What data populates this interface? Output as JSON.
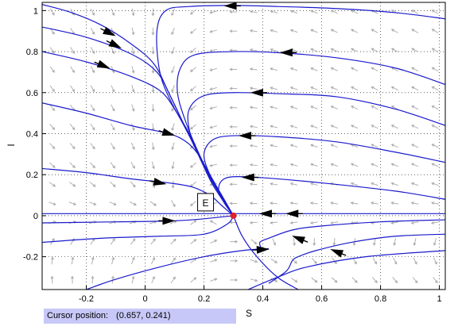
{
  "chart_data": {
    "type": "phase-portrait",
    "xlabel": "S",
    "ylabel": "I",
    "xlim": [
      -0.35,
      1.02
    ],
    "ylim": [
      -0.36,
      1.04
    ],
    "xticks": [
      "-0.2",
      "0",
      "0.2",
      "0.4",
      "0.6",
      "0.8",
      "1"
    ],
    "xtick_values": [
      -0.2,
      0,
      0.2,
      0.4,
      0.6,
      0.8,
      1.0
    ],
    "yticks": [
      "-0.2",
      "0",
      "0.2",
      "0.4",
      "0.6",
      "0.8",
      "1"
    ],
    "ytick_values": [
      -0.2,
      0,
      0.2,
      0.4,
      0.6,
      0.8,
      1.0
    ],
    "grid": "dotted",
    "equilibrium_label": "E",
    "equilibrium": {
      "x": 0.3,
      "y": 0.0
    },
    "colors": {
      "trajectory": "#1a1acd",
      "field": "#a9a9a9",
      "equilibrium": "#e0202a",
      "arrow": "#000000"
    },
    "trajectories": [
      {
        "points": [
          [
            1.02,
            0.96
          ],
          [
            0.85,
            0.99
          ],
          [
            0.65,
            1.01
          ],
          [
            0.45,
            1.02
          ],
          [
            0.3,
            1.025
          ],
          [
            0.15,
            1.02
          ],
          [
            0.07,
            1.0
          ],
          [
            0.04,
            0.9
          ],
          [
            0.05,
            0.7
          ],
          [
            0.09,
            0.55
          ],
          [
            0.15,
            0.4
          ],
          [
            0.2,
            0.25
          ],
          [
            0.25,
            0.12
          ],
          [
            0.3,
            0.0
          ]
        ]
      },
      {
        "points": [
          [
            1.02,
            0.64
          ],
          [
            0.85,
            0.72
          ],
          [
            0.65,
            0.77
          ],
          [
            0.45,
            0.795
          ],
          [
            0.3,
            0.8
          ],
          [
            0.17,
            0.785
          ],
          [
            0.12,
            0.72
          ],
          [
            0.11,
            0.6
          ],
          [
            0.14,
            0.45
          ],
          [
            0.19,
            0.28
          ],
          [
            0.24,
            0.14
          ],
          [
            0.3,
            0.0
          ]
        ]
      },
      {
        "points": [
          [
            1.02,
            0.44
          ],
          [
            0.85,
            0.52
          ],
          [
            0.65,
            0.58
          ],
          [
            0.45,
            0.595
          ],
          [
            0.3,
            0.6
          ],
          [
            0.2,
            0.585
          ],
          [
            0.15,
            0.52
          ],
          [
            0.15,
            0.42
          ],
          [
            0.18,
            0.3
          ],
          [
            0.23,
            0.16
          ],
          [
            0.3,
            0.0
          ]
        ]
      },
      {
        "points": [
          [
            1.02,
            0.26
          ],
          [
            0.85,
            0.31
          ],
          [
            0.65,
            0.36
          ],
          [
            0.45,
            0.385
          ],
          [
            0.3,
            0.39
          ],
          [
            0.23,
            0.37
          ],
          [
            0.2,
            0.3
          ],
          [
            0.22,
            0.2
          ],
          [
            0.26,
            0.1
          ],
          [
            0.3,
            0.0
          ]
        ]
      },
      {
        "points": [
          [
            1.02,
            0.08
          ],
          [
            0.85,
            0.12
          ],
          [
            0.6,
            0.16
          ],
          [
            0.4,
            0.185
          ],
          [
            0.3,
            0.19
          ],
          [
            0.26,
            0.17
          ],
          [
            0.25,
            0.12
          ],
          [
            0.27,
            0.06
          ],
          [
            0.3,
            0.0
          ]
        ]
      },
      {
        "points": [
          [
            -0.35,
            1.03
          ],
          [
            -0.25,
            0.99
          ],
          [
            -0.15,
            0.93
          ],
          [
            -0.05,
            0.84
          ],
          [
            0.03,
            0.74
          ],
          [
            0.08,
            0.6
          ],
          [
            0.13,
            0.45
          ],
          [
            0.18,
            0.3
          ],
          [
            0.23,
            0.15
          ],
          [
            0.3,
            0.0
          ]
        ]
      },
      {
        "points": [
          [
            -0.35,
            0.92
          ],
          [
            -0.2,
            0.87
          ],
          [
            -0.05,
            0.79
          ],
          [
            0.04,
            0.7
          ],
          [
            0.09,
            0.57
          ],
          [
            0.14,
            0.42
          ],
          [
            0.19,
            0.28
          ],
          [
            0.24,
            0.14
          ],
          [
            0.3,
            0.0
          ]
        ]
      },
      {
        "points": [
          [
            -0.35,
            0.8
          ],
          [
            -0.2,
            0.75
          ],
          [
            -0.05,
            0.68
          ],
          [
            0.05,
            0.61
          ],
          [
            0.1,
            0.52
          ],
          [
            0.15,
            0.39
          ],
          [
            0.2,
            0.25
          ],
          [
            0.25,
            0.12
          ],
          [
            0.3,
            0.0
          ]
        ]
      },
      {
        "points": [
          [
            -0.35,
            0.55
          ],
          [
            -0.2,
            0.5
          ],
          [
            -0.05,
            0.44
          ],
          [
            0.08,
            0.4
          ],
          [
            0.14,
            0.36
          ],
          [
            0.18,
            0.3
          ],
          [
            0.22,
            0.2
          ],
          [
            0.26,
            0.1
          ],
          [
            0.3,
            0.0
          ]
        ]
      },
      {
        "points": [
          [
            -0.35,
            0.23
          ],
          [
            -0.2,
            0.21
          ],
          [
            -0.05,
            0.18
          ],
          [
            0.08,
            0.16
          ],
          [
            0.16,
            0.14
          ],
          [
            0.22,
            0.1
          ],
          [
            0.26,
            0.05
          ],
          [
            0.3,
            0.0
          ]
        ]
      },
      {
        "points": [
          [
            -0.35,
            0.01
          ],
          [
            0.0,
            0.01
          ],
          [
            0.3,
            0.01
          ],
          [
            0.6,
            0.01
          ],
          [
            1.02,
            0.01
          ]
        ]
      },
      {
        "points": [
          [
            -0.35,
            -0.035
          ],
          [
            -0.1,
            -0.03
          ],
          [
            0.1,
            -0.025
          ],
          [
            0.2,
            -0.015
          ],
          [
            0.3,
            0.0
          ]
        ]
      },
      {
        "points": [
          [
            1.02,
            -0.02
          ],
          [
            0.8,
            -0.03
          ],
          [
            0.6,
            -0.05
          ],
          [
            0.5,
            -0.07
          ],
          [
            0.42,
            -0.11
          ],
          [
            0.39,
            -0.13
          ],
          [
            0.395,
            -0.16
          ]
        ]
      },
      {
        "points": [
          [
            -0.35,
            -0.13
          ],
          [
            -0.15,
            -0.11
          ],
          [
            0.05,
            -0.1
          ],
          [
            0.2,
            -0.09
          ],
          [
            0.28,
            -0.04
          ],
          [
            0.3,
            0.0
          ]
        ]
      },
      {
        "points": [
          [
            1.02,
            -0.09
          ],
          [
            0.85,
            -0.1
          ],
          [
            0.7,
            -0.13
          ],
          [
            0.58,
            -0.17
          ],
          [
            0.52,
            -0.2
          ],
          [
            0.5,
            -0.22
          ],
          [
            0.48,
            -0.27
          ],
          [
            0.42,
            -0.33
          ]
        ]
      },
      {
        "points": [
          [
            0.3,
            0.0
          ],
          [
            0.33,
            -0.1
          ],
          [
            0.38,
            -0.2
          ],
          [
            0.45,
            -0.3
          ],
          [
            0.52,
            -0.36
          ]
        ]
      },
      {
        "points": [
          [
            -0.2,
            -0.36
          ],
          [
            -0.1,
            -0.31
          ],
          [
            0.05,
            -0.25
          ],
          [
            0.2,
            -0.2
          ],
          [
            0.33,
            -0.17
          ],
          [
            0.42,
            -0.16
          ]
        ]
      },
      {
        "points": [
          [
            0.35,
            -0.36
          ],
          [
            0.45,
            -0.3
          ],
          [
            0.55,
            -0.25
          ],
          [
            0.75,
            -0.2
          ],
          [
            1.02,
            -0.17
          ]
        ]
      }
    ],
    "arrows": [
      {
        "at": [
          0.29,
          1.023
        ],
        "dir": [
          -1,
          0
        ]
      },
      {
        "at": [
          0.48,
          0.795
        ],
        "dir": [
          -1,
          0
        ]
      },
      {
        "at": [
          0.38,
          0.6
        ],
        "dir": [
          -1,
          0
        ]
      },
      {
        "at": [
          0.34,
          0.39
        ],
        "dir": [
          -1,
          0
        ]
      },
      {
        "at": [
          0.35,
          0.187
        ],
        "dir": [
          -1,
          0
        ]
      },
      {
        "at": [
          -0.12,
          0.89
        ],
        "dir": [
          1,
          -0.5
        ]
      },
      {
        "at": [
          -0.1,
          0.83
        ],
        "dir": [
          1,
          -0.5
        ]
      },
      {
        "at": [
          -0.14,
          0.73
        ],
        "dir": [
          1,
          -0.4
        ]
      },
      {
        "at": [
          0.08,
          0.4
        ],
        "dir": [
          1,
          -0.3
        ]
      },
      {
        "at": [
          0.05,
          0.16
        ],
        "dir": [
          1,
          -0.2
        ]
      },
      {
        "at": [
          0.41,
          0.01
        ],
        "dir": [
          -1,
          0
        ]
      },
      {
        "at": [
          0.5,
          0.01
        ],
        "dir": [
          -1,
          0
        ]
      },
      {
        "at": [
          0.08,
          -0.025
        ],
        "dir": [
          1,
          0
        ]
      },
      {
        "at": [
          0.52,
          -0.11
        ],
        "dir": [
          -1,
          0.4
        ]
      },
      {
        "at": [
          0.65,
          -0.175
        ],
        "dir": [
          -1,
          0.4
        ]
      },
      {
        "at": [
          0.4,
          -0.165
        ],
        "dir": [
          1,
          0.05
        ]
      }
    ]
  },
  "status_bar": {
    "label": "Cursor position:",
    "value": "(0.657, 0.241)"
  }
}
